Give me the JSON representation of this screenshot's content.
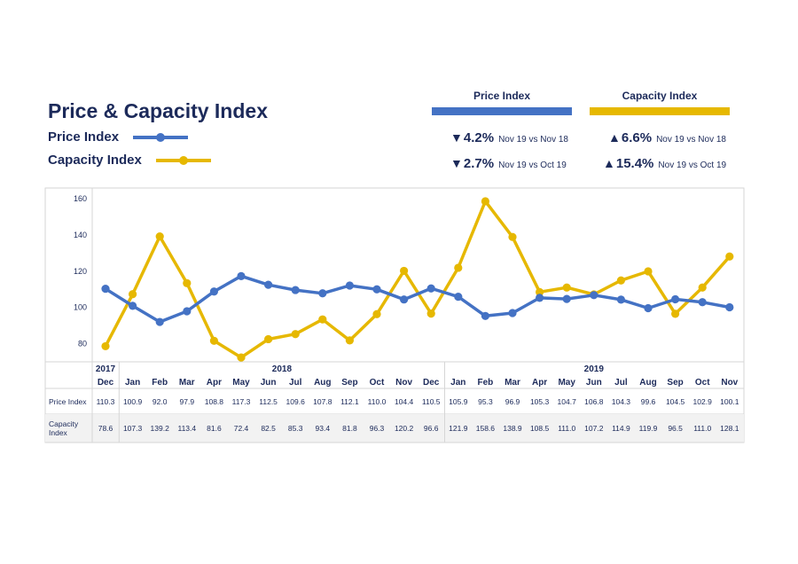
{
  "header": {
    "title": "Price & Capacity Index",
    "legend": [
      {
        "label": "Price Index",
        "color": "#4472c4"
      },
      {
        "label": "Capacity Index",
        "color": "#e6b800"
      }
    ]
  },
  "kpis": {
    "price": {
      "heading": "Price Index",
      "color": "#4472c4",
      "rows": [
        {
          "arrow": "▼",
          "value": "4.2%",
          "note": "Nov 19 vs Nov 18"
        },
        {
          "arrow": "▼",
          "value": "2.7%",
          "note": "Nov 19 vs Oct 19"
        }
      ]
    },
    "capacity": {
      "heading": "Capacity Index",
      "color": "#e6b800",
      "rows": [
        {
          "arrow": "▲",
          "value": "6.6%",
          "note": "Nov 19 vs Nov 18"
        },
        {
          "arrow": "▲",
          "value": "15.4%",
          "note": "Nov 19 vs Oct 19"
        }
      ]
    }
  },
  "chart_data": {
    "type": "line",
    "ylim": [
      70,
      162
    ],
    "yticks": [
      "80",
      "100",
      "120",
      "140",
      "160"
    ],
    "ytick_values": [
      80,
      100,
      120,
      140,
      160
    ],
    "years": [
      {
        "label": "2017",
        "start": 0,
        "end": 0
      },
      {
        "label": "2018",
        "start": 1,
        "end": 12
      },
      {
        "label": "2019",
        "start": 13,
        "end": 23
      }
    ],
    "months": [
      "Dec",
      "Jan",
      "Feb",
      "Mar",
      "Apr",
      "May",
      "Jun",
      "Jul",
      "Aug",
      "Sep",
      "Oct",
      "Nov",
      "Dec",
      "Jan",
      "Feb",
      "Mar",
      "Apr",
      "May",
      "Jun",
      "Jul",
      "Aug",
      "Sep",
      "Oct",
      "Nov"
    ],
    "series": [
      {
        "name": "Price Index",
        "row_label": [
          "Price Index"
        ],
        "color": "#4472c4",
        "values": [
          110.3,
          100.9,
          92.0,
          97.9,
          108.8,
          117.3,
          112.5,
          109.6,
          107.8,
          112.1,
          110.0,
          104.4,
          110.5,
          105.9,
          95.3,
          96.9,
          105.3,
          104.7,
          106.8,
          104.3,
          99.6,
          104.5,
          102.9,
          100.1
        ]
      },
      {
        "name": "Capacity Index",
        "row_label": [
          "Capacity",
          "Index"
        ],
        "color": "#e6b800",
        "values": [
          78.6,
          107.3,
          139.2,
          113.4,
          81.6,
          72.4,
          82.5,
          85.3,
          93.4,
          81.8,
          96.3,
          120.2,
          96.6,
          121.9,
          158.6,
          138.9,
          108.5,
          111.0,
          107.2,
          114.9,
          119.9,
          96.5,
          111.0,
          128.1
        ]
      }
    ],
    "table_values": {
      "price": [
        "110.3",
        "100.9",
        "92.0",
        "97.9",
        "108.8",
        "117.3",
        "112.5",
        "109.6",
        "107.8",
        "112.1",
        "110.0",
        "104.4",
        "110.5",
        "105.9",
        "95.3",
        "96.9",
        "105.3",
        "104.7",
        "106.8",
        "104.3",
        "99.6",
        "104.5",
        "102.9",
        "100.1"
      ],
      "capacity": [
        "78.6",
        "107.3",
        "139.2",
        "113.4",
        "81.6",
        "72.4",
        "82.5",
        "85.3",
        "93.4",
        "81.8",
        "96.3",
        "120.2",
        "96.6",
        "121.9",
        "158.6",
        "138.9",
        "108.5",
        "111.0",
        "107.2",
        "114.9",
        "119.9",
        "96.5",
        "111.0",
        "128.1"
      ]
    }
  }
}
